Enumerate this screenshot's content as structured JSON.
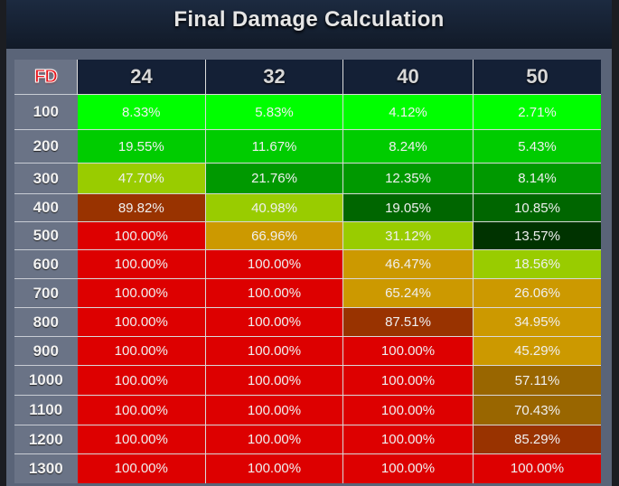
{
  "title": "Final Damage Calculation",
  "corner_label": "FD",
  "columns": [
    "24",
    "32",
    "40",
    "50"
  ],
  "rows": [
    {
      "fd": "100",
      "values": [
        "8.33%",
        "5.83%",
        "4.12%",
        "2.71%"
      ],
      "colors": [
        "#00ff00",
        "#00ff00",
        "#00ff00",
        "#00ff00"
      ]
    },
    {
      "fd": "200",
      "values": [
        "19.55%",
        "11.67%",
        "8.24%",
        "5.43%"
      ],
      "colors": [
        "#00cc00",
        "#00cc00",
        "#00cc00",
        "#00cc00"
      ]
    },
    {
      "fd": "300",
      "values": [
        "47.70%",
        "21.76%",
        "12.35%",
        "8.14%"
      ],
      "colors": [
        "#99cc00",
        "#009900",
        "#009900",
        "#009900"
      ]
    },
    {
      "fd": "400",
      "values": [
        "89.82%",
        "40.98%",
        "19.05%",
        "10.85%"
      ],
      "colors": [
        "#993300",
        "#99cc00",
        "#006600",
        "#006600"
      ]
    },
    {
      "fd": "500",
      "values": [
        "100.00%",
        "66.96%",
        "31.12%",
        "13.57%"
      ],
      "colors": [
        "#dd0000",
        "#cc9900",
        "#99cc00",
        "#003300"
      ]
    },
    {
      "fd": "600",
      "values": [
        "100.00%",
        "100.00%",
        "46.47%",
        "18.56%"
      ],
      "colors": [
        "#dd0000",
        "#dd0000",
        "#cc9900",
        "#99cc00"
      ]
    },
    {
      "fd": "700",
      "values": [
        "100.00%",
        "100.00%",
        "65.24%",
        "26.06%"
      ],
      "colors": [
        "#dd0000",
        "#dd0000",
        "#cc9900",
        "#cc9900"
      ]
    },
    {
      "fd": "800",
      "values": [
        "100.00%",
        "100.00%",
        "87.51%",
        "34.95%"
      ],
      "colors": [
        "#dd0000",
        "#dd0000",
        "#993300",
        "#cc9900"
      ]
    },
    {
      "fd": "900",
      "values": [
        "100.00%",
        "100.00%",
        "100.00%",
        "45.29%"
      ],
      "colors": [
        "#dd0000",
        "#dd0000",
        "#dd0000",
        "#cc9900"
      ]
    },
    {
      "fd": "1000",
      "values": [
        "100.00%",
        "100.00%",
        "100.00%",
        "57.11%"
      ],
      "colors": [
        "#dd0000",
        "#dd0000",
        "#dd0000",
        "#996600"
      ]
    },
    {
      "fd": "1100",
      "values": [
        "100.00%",
        "100.00%",
        "100.00%",
        "70.43%"
      ],
      "colors": [
        "#dd0000",
        "#dd0000",
        "#dd0000",
        "#996600"
      ]
    },
    {
      "fd": "1200",
      "values": [
        "100.00%",
        "100.00%",
        "100.00%",
        "85.29%"
      ],
      "colors": [
        "#dd0000",
        "#dd0000",
        "#dd0000",
        "#993300"
      ]
    },
    {
      "fd": "1300",
      "values": [
        "100.00%",
        "100.00%",
        "100.00%",
        "100.00%"
      ],
      "colors": [
        "#dd0000",
        "#dd0000",
        "#dd0000",
        "#dd0000"
      ]
    }
  ]
}
